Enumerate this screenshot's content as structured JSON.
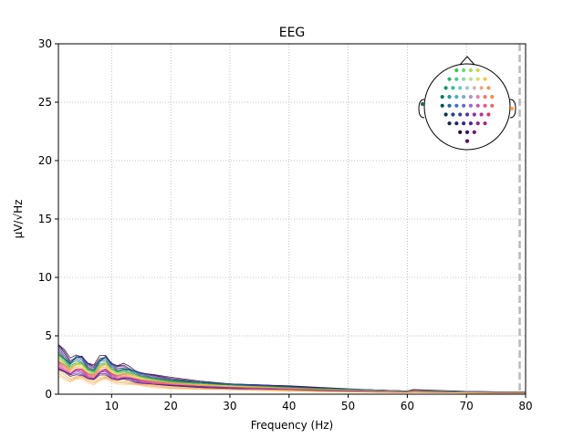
{
  "chart_data": {
    "type": "line",
    "title": "EEG",
    "xlabel": "Frequency (Hz)",
    "ylabel": "µV/√Hz",
    "xlim": [
      1,
      80
    ],
    "ylim": [
      0,
      30
    ],
    "x_ticks": [
      10,
      20,
      30,
      40,
      50,
      60,
      70,
      80
    ],
    "y_ticks": [
      0,
      5,
      10,
      15,
      20,
      25,
      30
    ],
    "grid": true,
    "vline_x": 79,
    "vline_color": "#bbbbbb",
    "mean_profile": {
      "x": [
        1,
        2,
        3,
        4,
        5,
        6,
        7,
        8,
        9,
        10,
        11,
        12,
        13,
        14,
        15,
        17,
        20,
        25,
        30,
        35,
        40,
        45,
        50,
        55,
        60,
        61,
        65,
        70,
        75,
        80
      ],
      "y": [
        3.4,
        2.9,
        2.4,
        2.8,
        2.7,
        2.1,
        1.9,
        2.6,
        2.8,
        2.2,
        1.9,
        2.0,
        1.9,
        1.7,
        1.5,
        1.3,
        1.1,
        0.9,
        0.75,
        0.65,
        0.55,
        0.45,
        0.38,
        0.3,
        0.22,
        0.3,
        0.25,
        0.2,
        0.17,
        0.15
      ]
    },
    "series_scales": [
      1.25,
      1.2,
      1.18,
      1.15,
      1.12,
      1.1,
      1.08,
      1.05,
      1.03,
      1.0,
      0.98,
      0.96,
      0.94,
      0.92,
      0.9,
      0.88,
      0.86,
      0.84,
      0.82,
      0.8,
      0.78,
      0.76,
      0.74,
      0.72,
      0.7,
      0.68,
      0.65,
      0.62,
      0.58,
      0.55,
      0.5,
      0.45
    ],
    "series_colors": [
      "#2a0a3a",
      "#3b0f5a",
      "#4a1a7a",
      "#3d2a8a",
      "#2f3c8f",
      "#1f4e8c",
      "#1a5f8a",
      "#147085",
      "#0f8070",
      "#1a9060",
      "#2aa050",
      "#4bb040",
      "#70c040",
      "#9ac840",
      "#c0d040",
      "#e0d040",
      "#f0c040",
      "#f4a840",
      "#f49050",
      "#f07860",
      "#e86070",
      "#e05080",
      "#d04090",
      "#c030a0",
      "#a030b0",
      "#8030a0",
      "#602090",
      "#501880",
      "#e0e060",
      "#f0b070",
      "#f8a060",
      "#fcd080"
    ],
    "legend": "sensor-topomap",
    "legend_placement": "top-right"
  },
  "sensor_layout": {
    "rows": [
      {
        "count": 4,
        "colors": [
          "#33cc55",
          "#66dd66",
          "#99e066",
          "#ccd844"
        ]
      },
      {
        "count": 6,
        "colors": [
          "#22bb66",
          "#44cc88",
          "#88dd99",
          "#bbdd88",
          "#dddd66",
          "#f0c840"
        ]
      },
      {
        "count": 7,
        "colors": [
          "#119966",
          "#33bb99",
          "#66cccc",
          "#99ccdd",
          "#ccbbbb",
          "#eeaa88",
          "#f59a50"
        ]
      },
      {
        "count": 8,
        "colors": [
          "#0a7a66",
          "#229999",
          "#44aacc",
          "#77aadd",
          "#aa99cc",
          "#dd88aa",
          "#f07a70",
          "#f58a50"
        ]
      },
      {
        "count": 8,
        "colors": [
          "#064f55",
          "#1a6f99",
          "#3a6fcc",
          "#6a66cc",
          "#9966cc",
          "#cc55aa",
          "#ee5588",
          "#f06a60"
        ]
      },
      {
        "count": 7,
        "colors": [
          "#0a3344",
          "#1a4488",
          "#3344aa",
          "#5533aa",
          "#8833aa",
          "#bb3399",
          "#dd3377"
        ]
      },
      {
        "count": 6,
        "colors": [
          "#1a2244",
          "#222266",
          "#332288",
          "#552288",
          "#882288",
          "#aa2277"
        ]
      },
      {
        "count": 3,
        "colors": [
          "#221133",
          "#441166",
          "#771177"
        ]
      },
      {
        "count": 1,
        "colors": [
          "#660055"
        ]
      }
    ],
    "side_left": "#226644",
    "side_right": "#f5a040"
  }
}
